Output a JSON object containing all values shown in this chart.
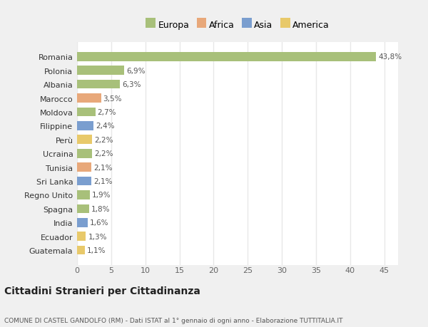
{
  "categories": [
    "Guatemala",
    "Ecuador",
    "India",
    "Spagna",
    "Regno Unito",
    "Sri Lanka",
    "Tunisia",
    "Ucraina",
    "Perù",
    "Filippine",
    "Moldova",
    "Marocco",
    "Albania",
    "Polonia",
    "Romania"
  ],
  "values": [
    1.1,
    1.3,
    1.6,
    1.8,
    1.9,
    2.1,
    2.1,
    2.2,
    2.2,
    2.4,
    2.7,
    3.5,
    6.3,
    6.9,
    43.8
  ],
  "labels": [
    "1,1%",
    "1,3%",
    "1,6%",
    "1,8%",
    "1,9%",
    "2,1%",
    "2,1%",
    "2,2%",
    "2,2%",
    "2,4%",
    "2,7%",
    "3,5%",
    "6,3%",
    "6,9%",
    "43,8%"
  ],
  "colors": [
    "#e8c96a",
    "#e8c96a",
    "#7a9ecf",
    "#a8c07a",
    "#a8c07a",
    "#7a9ecf",
    "#e8a87a",
    "#a8c07a",
    "#e8c96a",
    "#7a9ecf",
    "#a8c07a",
    "#e8a87a",
    "#a8c07a",
    "#a8c07a",
    "#a8c07a"
  ],
  "legend_labels": [
    "Europa",
    "Africa",
    "Asia",
    "America"
  ],
  "legend_colors": [
    "#a8c07a",
    "#e8a87a",
    "#7a9ecf",
    "#e8c96a"
  ],
  "title": "Cittadini Stranieri per Cittadinanza",
  "subtitle": "COMUNE DI CASTEL GANDOLFO (RM) - Dati ISTAT al 1° gennaio di ogni anno - Elaborazione TUTTITALIA.IT",
  "xlim": [
    0,
    47
  ],
  "background_color": "#f0f0f0",
  "plot_bg_color": "#ffffff",
  "grid_color": "#e8e8e8"
}
